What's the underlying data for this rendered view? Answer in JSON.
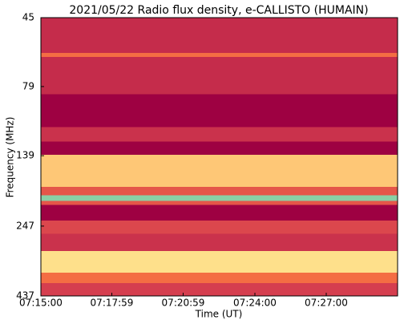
{
  "chart_data": {
    "type": "heatmap",
    "title": "2021/05/22  Radio flux density, e-CALLISTO (HUMAIN)",
    "x_label": "Time (UT)",
    "y_label": "Frequency (MHz)",
    "xlim": [
      26100,
      27000
    ],
    "xticks": [
      {
        "value": 26100,
        "label": "07:15:00"
      },
      {
        "value": 26279,
        "label": "07:17:59"
      },
      {
        "value": 26459,
        "label": "07:20:59"
      },
      {
        "value": 26640,
        "label": "07:24:00"
      },
      {
        "value": 26820,
        "label": "07:27:00"
      }
    ],
    "ylim": [
      45,
      437
    ],
    "yticks": [
      45,
      79,
      139,
      247,
      437
    ],
    "yscale": "log",
    "yinverted": true,
    "colormap": "Spectral",
    "y_bins": [
      45,
      60,
      62,
      84,
      110,
      124,
      138,
      179,
      192,
      201,
      208,
      236,
      263,
      303,
      361,
      393,
      437
    ],
    "values": [
      0.07,
      0.2,
      0.07,
      0,
      0.08,
      0,
      0.35,
      0.15,
      0.75,
      0.15,
      0,
      0.12,
      0.08,
      0.4,
      0.2,
      0.1
    ]
  }
}
